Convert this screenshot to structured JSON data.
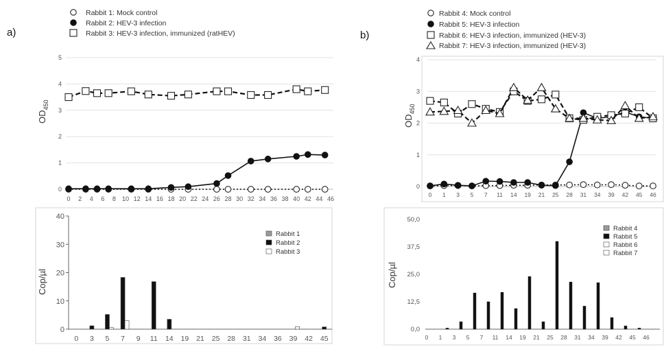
{
  "panels": [
    {
      "label": "a)",
      "top_chart": {
        "type": "line",
        "ylabel": "OD",
        "ylabel_sub": "450",
        "ylim": [
          0,
          5
        ],
        "yticks": [
          0,
          1,
          2,
          3,
          4,
          5
        ],
        "x": [
          0,
          2,
          4,
          6,
          8,
          10,
          12,
          14,
          16,
          18,
          20,
          22,
          24,
          26,
          28,
          30,
          32,
          34,
          36,
          38,
          40,
          42,
          44,
          46
        ],
        "legend": [
          {
            "label": "Rabbit 1: Mock control",
            "marker": "circle-open"
          },
          {
            "label": "Rabbit 2: HEV-3 infection",
            "marker": "circle-filled"
          },
          {
            "label": "Rabbit 3: HEV-3 infection, immunized (ratHEV)",
            "marker": "square-open"
          }
        ],
        "series": [
          {
            "marker": "circle-open",
            "line": "dotted",
            "points": [
              [
                0,
                0
              ],
              [
                3,
                0
              ],
              [
                5,
                0
              ],
              [
                7,
                0
              ],
              [
                11,
                0
              ],
              [
                14,
                0
              ],
              [
                18,
                0
              ],
              [
                21,
                0
              ],
              [
                26,
                0
              ],
              [
                28,
                0
              ],
              [
                32,
                0
              ],
              [
                35,
                0
              ],
              [
                40,
                0
              ],
              [
                42,
                0
              ],
              [
                45,
                0
              ]
            ]
          },
          {
            "marker": "circle-filled",
            "line": "solid",
            "points": [
              [
                0,
                0.02
              ],
              [
                3,
                0.02
              ],
              [
                5,
                0.02
              ],
              [
                7,
                0.02
              ],
              [
                11,
                0.02
              ],
              [
                14,
                0.02
              ],
              [
                18,
                0.07
              ],
              [
                21,
                0.1
              ],
              [
                26,
                0.22
              ],
              [
                28,
                0.52
              ],
              [
                32,
                1.07
              ],
              [
                35,
                1.15
              ],
              [
                40,
                1.25
              ],
              [
                42,
                1.32
              ],
              [
                45,
                1.3
              ]
            ]
          },
          {
            "marker": "square-open",
            "line": "dashed",
            "points": [
              [
                0,
                3.5
              ],
              [
                3,
                3.73
              ],
              [
                5,
                3.65
              ],
              [
                7,
                3.65
              ],
              [
                11,
                3.72
              ],
              [
                14,
                3.6
              ],
              [
                18,
                3.55
              ],
              [
                21,
                3.6
              ],
              [
                26,
                3.72
              ],
              [
                28,
                3.72
              ],
              [
                32,
                3.58
              ],
              [
                35,
                3.58
              ],
              [
                40,
                3.8
              ],
              [
                42,
                3.72
              ],
              [
                45,
                3.77
              ]
            ]
          }
        ]
      },
      "bottom_chart": {
        "type": "bar",
        "ylabel": "Cop/µl",
        "ylim": [
          0,
          40
        ],
        "yticks": [
          0,
          10,
          20,
          30,
          40
        ],
        "categories": [
          "0",
          "3",
          "5",
          "7",
          "9",
          "11",
          "14",
          "19",
          "21",
          "25",
          "28",
          "31",
          "34",
          "36",
          "39",
          "42",
          "45"
        ],
        "legend": [
          {
            "label": "Rabbit 1",
            "color": "#9a9a9a"
          },
          {
            "label": "Rabbit 2",
            "color": "#111111"
          },
          {
            "label": "Rabbit 3",
            "color": "#ffffff"
          }
        ],
        "series": [
          {
            "values": [
              0,
              0,
              0,
              0,
              0,
              0,
              0,
              0,
              0,
              0,
              0,
              0,
              0,
              0,
              0,
              0,
              0
            ]
          },
          {
            "values": [
              0,
              1.2,
              5.2,
              18.3,
              0,
              16.8,
              3.5,
              0,
              0,
              0,
              0,
              0,
              0,
              0,
              0,
              0,
              0.8
            ]
          },
          {
            "values": [
              0,
              0,
              0.6,
              3.0,
              0,
              0,
              0,
              0,
              0,
              0,
              0,
              0,
              0,
              0,
              0.9,
              0,
              0
            ]
          }
        ]
      }
    },
    {
      "label": "b)",
      "top_chart": {
        "type": "line",
        "ylabel": "OD",
        "ylabel_sub": "450",
        "ylim": [
          0,
          4
        ],
        "yticks": [
          0,
          1,
          2,
          3,
          4
        ],
        "categories": [
          "0",
          "1",
          "3",
          "5",
          "7",
          "11",
          "14",
          "19",
          "21",
          "25",
          "28",
          "31",
          "34",
          "39",
          "42",
          "45",
          "46"
        ],
        "legend": [
          {
            "label": "Rabbit 4: Mock control",
            "marker": "circle-open"
          },
          {
            "label": "Rabbit 5: HEV-3 infection",
            "marker": "circle-filled"
          },
          {
            "label": "Rabbit 6: HEV-3 infection, immunized (HEV-3)",
            "marker": "square-open"
          },
          {
            "label": "Rabbit 7: HEV-3 infection, immunized (HEV-3)",
            "marker": "triangle-open"
          }
        ],
        "series": [
          {
            "marker": "circle-open",
            "line": "dotted",
            "values": [
              0.02,
              0.03,
              0.03,
              0.02,
              0.03,
              0.03,
              0.04,
              0.04,
              0.05,
              0.05,
              0.05,
              0.06,
              0.05,
              0.06,
              0.04,
              0.02,
              0.02
            ]
          },
          {
            "marker": "circle-filled",
            "line": "solid",
            "values": [
              0.02,
              0.08,
              0.04,
              0.02,
              0.17,
              0.16,
              0.13,
              0.13,
              0.04,
              0.03,
              0.78,
              2.33,
              2.15,
              2.2,
              2.35,
              2.2,
              2.15
            ]
          },
          {
            "marker": "square-open",
            "line": "dashed",
            "values": [
              2.7,
              2.65,
              2.3,
              2.6,
              2.45,
              2.35,
              3.0,
              2.7,
              2.75,
              2.9,
              2.15,
              2.1,
              2.2,
              2.25,
              2.3,
              2.5,
              2.15
            ]
          },
          {
            "marker": "triangle-open",
            "line": "dashed",
            "values": [
              2.35,
              2.37,
              2.4,
              2.0,
              2.4,
              2.3,
              3.12,
              2.72,
              3.12,
              2.45,
              2.15,
              2.15,
              2.1,
              2.08,
              2.55,
              2.15,
              2.2
            ]
          }
        ]
      },
      "bottom_chart": {
        "type": "bar",
        "ylabel": "Cop/µl",
        "ylim": [
          0,
          50
        ],
        "yticks": [
          "0,0",
          "12,5",
          "25,0",
          "37,5",
          "50,0"
        ],
        "ytick_values": [
          0,
          12.5,
          25,
          37.5,
          50
        ],
        "categories": [
          "0",
          "1",
          "3",
          "5",
          "7",
          "11",
          "14",
          "19",
          "21",
          "25",
          "28",
          "31",
          "34",
          "39",
          "42",
          "45",
          "46"
        ],
        "legend": [
          {
            "label": "Rabbit 4",
            "color": "#9a9a9a"
          },
          {
            "label": "Rabbit 5",
            "color": "#111111"
          },
          {
            "label": "Rabbit 6",
            "color": "#ffffff"
          },
          {
            "label": "Rabbit 7",
            "color": "#ffffff"
          }
        ],
        "series": [
          {
            "values": [
              0,
              0,
              0,
              0,
              0,
              0,
              0,
              0,
              0,
              0,
              0,
              0,
              0,
              0,
              0,
              0,
              0
            ]
          },
          {
            "values": [
              0,
              0.5,
              3.4,
              16.5,
              12.5,
              16.8,
              9.4,
              24.0,
              3.4,
              40.0,
              21.5,
              10.5,
              21.2,
              5.3,
              1.5,
              0.5,
              0
            ]
          },
          {
            "values": [
              0,
              0,
              0,
              0,
              0,
              0,
              0,
              0,
              0,
              0,
              0,
              0,
              0,
              0,
              0,
              0,
              0
            ]
          },
          {
            "values": [
              0,
              0,
              0,
              0,
              0,
              0,
              0,
              0,
              0,
              0,
              0,
              0,
              0,
              0,
              0,
              0,
              0
            ]
          }
        ]
      }
    }
  ],
  "chart_data": [
    {
      "type": "line",
      "panel": "a) top",
      "ylabel": "OD450",
      "ylim": [
        0,
        5
      ],
      "series": [
        {
          "name": "Rabbit 1: Mock control",
          "x": [
            0,
            3,
            5,
            7,
            11,
            14,
            18,
            21,
            26,
            28,
            32,
            35,
            40,
            42,
            45
          ],
          "y": [
            0,
            0,
            0,
            0,
            0,
            0,
            0,
            0,
            0,
            0,
            0,
            0,
            0,
            0,
            0
          ]
        },
        {
          "name": "Rabbit 2: HEV-3 infection",
          "x": [
            0,
            3,
            5,
            7,
            11,
            14,
            18,
            21,
            26,
            28,
            32,
            35,
            40,
            42,
            45
          ],
          "y": [
            0.02,
            0.02,
            0.02,
            0.02,
            0.02,
            0.02,
            0.07,
            0.1,
            0.22,
            0.52,
            1.07,
            1.15,
            1.25,
            1.32,
            1.3
          ]
        },
        {
          "name": "Rabbit 3: HEV-3 infection, immunized (ratHEV)",
          "x": [
            0,
            3,
            5,
            7,
            11,
            14,
            18,
            21,
            26,
            28,
            32,
            35,
            40,
            42,
            45
          ],
          "y": [
            3.5,
            3.73,
            3.65,
            3.65,
            3.72,
            3.6,
            3.55,
            3.6,
            3.72,
            3.72,
            3.58,
            3.58,
            3.8,
            3.72,
            3.77
          ]
        }
      ]
    },
    {
      "type": "bar",
      "panel": "a) bottom",
      "ylabel": "Cop/µl",
      "ylim": [
        0,
        40
      ],
      "categories": [
        "0",
        "3",
        "5",
        "7",
        "9",
        "11",
        "14",
        "19",
        "21",
        "25",
        "28",
        "31",
        "34",
        "36",
        "39",
        "42",
        "45"
      ],
      "series": [
        {
          "name": "Rabbit 1",
          "values": [
            0,
            0,
            0,
            0,
            0,
            0,
            0,
            0,
            0,
            0,
            0,
            0,
            0,
            0,
            0,
            0,
            0
          ]
        },
        {
          "name": "Rabbit 2",
          "values": [
            0,
            1.2,
            5.2,
            18.3,
            0,
            16.8,
            3.5,
            0,
            0,
            0,
            0,
            0,
            0,
            0,
            0,
            0,
            0.8
          ]
        },
        {
          "name": "Rabbit 3",
          "values": [
            0,
            0,
            0.6,
            3.0,
            0,
            0,
            0,
            0,
            0,
            0,
            0,
            0,
            0,
            0,
            0.9,
            0,
            0
          ]
        }
      ]
    },
    {
      "type": "line",
      "panel": "b) top",
      "ylabel": "OD450",
      "ylim": [
        0,
        4
      ],
      "categories": [
        "0",
        "1",
        "3",
        "5",
        "7",
        "11",
        "14",
        "19",
        "21",
        "25",
        "28",
        "31",
        "34",
        "39",
        "42",
        "45",
        "46"
      ],
      "series": [
        {
          "name": "Rabbit 4: Mock control",
          "values": [
            0.02,
            0.03,
            0.03,
            0.02,
            0.03,
            0.03,
            0.04,
            0.04,
            0.05,
            0.05,
            0.05,
            0.06,
            0.05,
            0.06,
            0.04,
            0.02,
            0.02
          ]
        },
        {
          "name": "Rabbit 5: HEV-3 infection",
          "values": [
            0.02,
            0.08,
            0.04,
            0.02,
            0.17,
            0.16,
            0.13,
            0.13,
            0.04,
            0.03,
            0.78,
            2.33,
            2.15,
            2.2,
            2.35,
            2.2,
            2.15
          ]
        },
        {
          "name": "Rabbit 6: HEV-3 infection, immunized (HEV-3)",
          "values": [
            2.7,
            2.65,
            2.3,
            2.6,
            2.45,
            2.35,
            3.0,
            2.7,
            2.75,
            2.9,
            2.15,
            2.1,
            2.2,
            2.25,
            2.3,
            2.5,
            2.15
          ]
        },
        {
          "name": "Rabbit 7: HEV-3 infection, immunized (HEV-3)",
          "values": [
            2.35,
            2.37,
            2.4,
            2.0,
            2.4,
            2.3,
            3.12,
            2.72,
            3.12,
            2.45,
            2.15,
            2.15,
            2.1,
            2.08,
            2.55,
            2.15,
            2.2
          ]
        }
      ]
    },
    {
      "type": "bar",
      "panel": "b) bottom",
      "ylabel": "Cop/µl",
      "ylim": [
        0,
        50
      ],
      "categories": [
        "0",
        "1",
        "3",
        "5",
        "7",
        "11",
        "14",
        "19",
        "21",
        "25",
        "28",
        "31",
        "34",
        "39",
        "42",
        "45",
        "46"
      ],
      "series": [
        {
          "name": "Rabbit 4",
          "values": [
            0,
            0,
            0,
            0,
            0,
            0,
            0,
            0,
            0,
            0,
            0,
            0,
            0,
            0,
            0,
            0,
            0
          ]
        },
        {
          "name": "Rabbit 5",
          "values": [
            0,
            0.5,
            3.4,
            16.5,
            12.5,
            16.8,
            9.4,
            24.0,
            3.4,
            40.0,
            21.5,
            10.5,
            21.2,
            5.3,
            1.5,
            0.5,
            0
          ]
        },
        {
          "name": "Rabbit 6",
          "values": [
            0,
            0,
            0,
            0,
            0,
            0,
            0,
            0,
            0,
            0,
            0,
            0,
            0,
            0,
            0,
            0,
            0
          ]
        },
        {
          "name": "Rabbit 7",
          "values": [
            0,
            0,
            0,
            0,
            0,
            0,
            0,
            0,
            0,
            0,
            0,
            0,
            0,
            0,
            0,
            0,
            0
          ]
        }
      ]
    }
  ]
}
